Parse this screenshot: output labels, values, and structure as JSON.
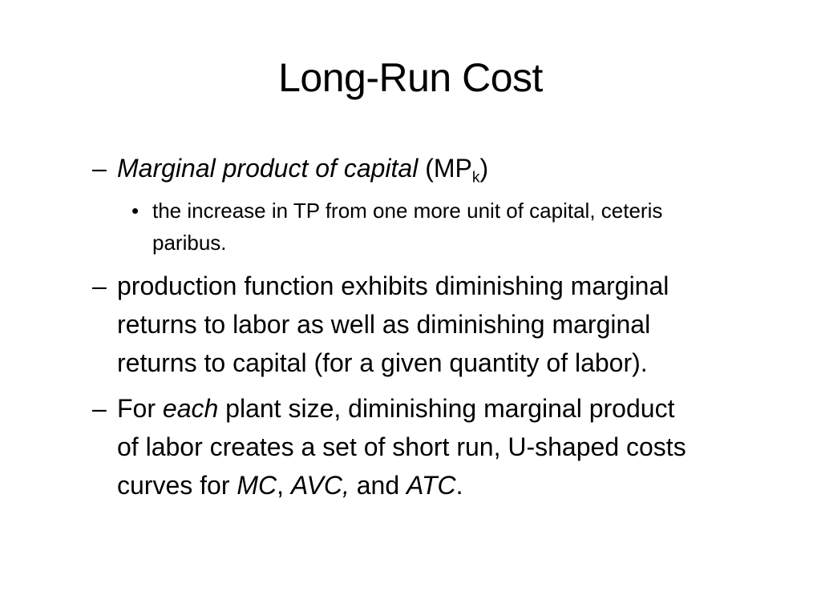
{
  "slide": {
    "title": "Long-Run Cost",
    "items": [
      {
        "marker": "–",
        "term": "Marginal product of capital",
        "paren_open": " (MP",
        "subscript": "k",
        "paren_close": ")"
      },
      {
        "marker": "•",
        "lines": [
          "the increase in TP from one more unit of capital, ceteris",
          "paribus."
        ]
      },
      {
        "marker": "–",
        "lines": [
          "production function exhibits diminishing marginal",
          "returns to labor as well as diminishing marginal",
          "returns to capital (for a given quantity of labor)."
        ]
      },
      {
        "marker": "–",
        "line1_a": "For ",
        "line1_em": "each",
        "line1_b": " plant size, diminishing marginal product",
        "line2": "of labor creates a set of short run, U-shaped costs",
        "line3_a": "curves for ",
        "line3_mc": "MC",
        "line3_sep1": ", ",
        "line3_avc": "AVC,",
        "line3_and": " and ",
        "line3_atc": "ATC",
        "line3_end": "."
      }
    ]
  }
}
